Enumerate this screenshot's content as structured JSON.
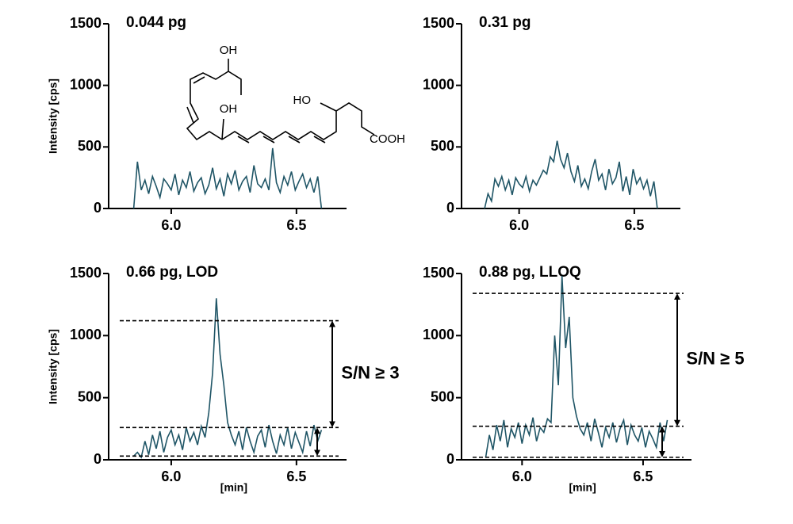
{
  "chart_data": [
    {
      "type": "line",
      "title": "0.044 pg",
      "ylabel": "Intensity [cps]",
      "color": "#1f5566",
      "annotations": [
        "OH",
        "OH",
        "HO",
        "COOH"
      ],
      "x": [
        5.85,
        5.865,
        5.88,
        5.895,
        5.91,
        5.925,
        5.94,
        5.955,
        5.97,
        5.985,
        6.0,
        6.015,
        6.03,
        6.045,
        6.06,
        6.075,
        6.09,
        6.105,
        6.12,
        6.135,
        6.15,
        6.165,
        6.18,
        6.195,
        6.21,
        6.225,
        6.24,
        6.255,
        6.27,
        6.285,
        6.3,
        6.315,
        6.33,
        6.345,
        6.36,
        6.375,
        6.39,
        6.405,
        6.42,
        6.435,
        6.45,
        6.465,
        6.48,
        6.495,
        6.51,
        6.525,
        6.54,
        6.555,
        6.57,
        6.585,
        6.6
      ],
      "values": [
        0,
        380,
        150,
        230,
        120,
        260,
        180,
        90,
        240,
        200,
        150,
        280,
        110,
        230,
        170,
        300,
        140,
        210,
        250,
        120,
        190,
        330,
        160,
        240,
        100,
        280,
        200,
        310,
        150,
        220,
        260,
        130,
        350,
        200,
        170,
        240,
        150,
        490,
        210,
        130,
        260,
        190,
        300,
        150,
        220,
        280,
        170,
        240,
        130,
        260,
        0
      ],
      "xlim": [
        5.75,
        6.7
      ],
      "ylim": [
        0,
        1500
      ],
      "xticks": [
        {
          "value": 6,
          "label": "6.0"
        },
        6.5
      ],
      "yticks": [
        0,
        500,
        1000,
        1500
      ]
    },
    {
      "type": "line",
      "title": "0.31 pg",
      "color": "#1f5566",
      "x": [
        5.85,
        5.865,
        5.88,
        5.895,
        5.91,
        5.925,
        5.94,
        5.955,
        5.97,
        5.985,
        6.0,
        6.015,
        6.03,
        6.045,
        6.06,
        6.075,
        6.09,
        6.105,
        6.12,
        6.135,
        6.15,
        6.165,
        6.18,
        6.195,
        6.21,
        6.225,
        6.24,
        6.255,
        6.27,
        6.285,
        6.3,
        6.315,
        6.33,
        6.345,
        6.36,
        6.375,
        6.39,
        6.405,
        6.42,
        6.435,
        6.45,
        6.465,
        6.48,
        6.495,
        6.51,
        6.525,
        6.54,
        6.555,
        6.57,
        6.585,
        6.6
      ],
      "values": [
        0,
        120,
        60,
        240,
        180,
        260,
        150,
        230,
        110,
        250,
        200,
        170,
        260,
        140,
        230,
        190,
        250,
        310,
        280,
        420,
        380,
        550,
        400,
        330,
        450,
        300,
        220,
        350,
        180,
        240,
        160,
        300,
        400,
        230,
        280,
        150,
        320,
        200,
        250,
        380,
        140,
        260,
        110,
        320,
        200,
        250,
        160,
        230,
        100,
        220,
        0
      ],
      "xlim": [
        5.75,
        6.7
      ],
      "ylim": [
        0,
        1500
      ],
      "xticks": [
        {
          "value": 6,
          "label": "6.0"
        },
        6.5
      ],
      "yticks": [
        0,
        500,
        1000,
        1500
      ]
    },
    {
      "type": "line",
      "title": "0.66 pg, LOD",
      "ylabel": "Intensity [cps]",
      "xlabel": "[min]",
      "color": "#1f5566",
      "x": [
        5.85,
        5.865,
        5.88,
        5.895,
        5.91,
        5.925,
        5.94,
        5.955,
        5.97,
        5.985,
        6.0,
        6.015,
        6.03,
        6.045,
        6.06,
        6.075,
        6.09,
        6.105,
        6.12,
        6.135,
        6.15,
        6.165,
        6.18,
        6.195,
        6.21,
        6.225,
        6.24,
        6.255,
        6.27,
        6.285,
        6.3,
        6.315,
        6.33,
        6.345,
        6.36,
        6.375,
        6.39,
        6.405,
        6.42,
        6.435,
        6.45,
        6.465,
        6.48,
        6.495,
        6.51,
        6.525,
        6.54,
        6.555,
        6.57,
        6.585,
        6.6
      ],
      "values": [
        30,
        60,
        20,
        150,
        40,
        200,
        90,
        230,
        60,
        180,
        240,
        120,
        200,
        80,
        260,
        150,
        220,
        120,
        270,
        180,
        380,
        700,
        1300,
        850,
        600,
        300,
        200,
        120,
        230,
        80,
        260,
        150,
        60,
        190,
        240,
        100,
        280,
        150,
        50,
        200,
        120,
        260,
        90,
        220,
        140,
        60,
        230,
        110,
        280,
        150,
        240
      ],
      "reference_lines": [
        1120,
        260,
        30
      ],
      "annotation": "S/N ≥ 3",
      "annotation_color": "#c0504d",
      "xlim": [
        5.75,
        6.7
      ],
      "ylim": [
        0,
        1500
      ],
      "xticks": [
        {
          "value": 6,
          "label": "6.0"
        },
        6.5
      ],
      "yticks": [
        0,
        500,
        1000,
        1500
      ]
    },
    {
      "type": "line",
      "title": "0.88 pg,  LLOQ",
      "xlabel": "[min]",
      "color": "#1f5566",
      "x": [
        5.85,
        5.865,
        5.88,
        5.895,
        5.91,
        5.925,
        5.94,
        5.955,
        5.97,
        5.985,
        6.0,
        6.015,
        6.03,
        6.045,
        6.06,
        6.075,
        6.09,
        6.105,
        6.12,
        6.135,
        6.15,
        6.165,
        6.18,
        6.195,
        6.21,
        6.225,
        6.24,
        6.255,
        6.27,
        6.285,
        6.3,
        6.315,
        6.33,
        6.345,
        6.36,
        6.375,
        6.39,
        6.405,
        6.42,
        6.435,
        6.45,
        6.465,
        6.48,
        6.495,
        6.51,
        6.525,
        6.54,
        6.555,
        6.57,
        6.585,
        6.6
      ],
      "values": [
        20,
        200,
        80,
        280,
        150,
        320,
        100,
        250,
        180,
        300,
        130,
        280,
        200,
        340,
        150,
        260,
        220,
        330,
        300,
        1000,
        600,
        1480,
        900,
        1150,
        500,
        350,
        250,
        200,
        300,
        150,
        330,
        220,
        100,
        260,
        180,
        300,
        140,
        250,
        320,
        120,
        280,
        200,
        150,
        260,
        100,
        230,
        170,
        100,
        300,
        150,
        320
      ],
      "reference_lines": [
        1340,
        270,
        20
      ],
      "annotation": "S/N ≥ 5",
      "annotation_color": "#c0504d",
      "xlim": [
        5.75,
        6.7
      ],
      "ylim": [
        0,
        1500
      ],
      "xticks": [
        {
          "value": 6,
          "label": "6.0"
        },
        6.5
      ],
      "yticks": [
        0,
        500,
        1000,
        1500
      ]
    }
  ]
}
